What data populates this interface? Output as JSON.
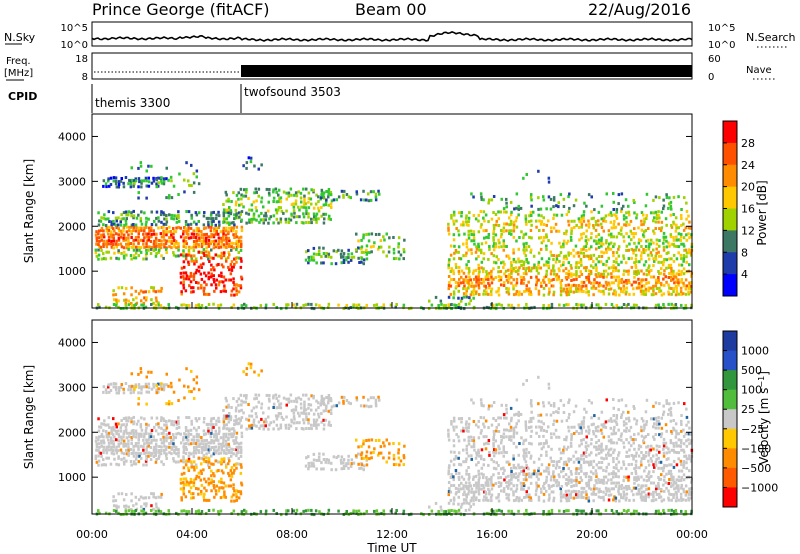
{
  "header": {
    "station": "Prince George (fitACF)",
    "beam": "Beam 00",
    "date": "22/Aug/2016"
  },
  "colors": {
    "power_scale": [
      "#0000ff",
      "#1e3caa",
      "#3c7864",
      "#32c832",
      "#a0d200",
      "#ffc800",
      "#ff8c00",
      "#ff5000",
      "#ff0000"
    ],
    "velocity_scale": [
      "#ff0000",
      "#ff5a00",
      "#ff8c00",
      "#ffc800",
      "#c8c8c8",
      "#c8c8c8",
      "#64c832",
      "#32963c",
      "#1e64a0",
      "#0000ff"
    ]
  },
  "chart_data": [
    {
      "type": "line",
      "panel": "noise",
      "left_label": "N.Sky",
      "right_label": "N.Search",
      "left_ticks": [
        "10^5",
        "10^0"
      ],
      "right_ticks": [
        "10^5",
        "10^0"
      ]
    },
    {
      "type": "line",
      "panel": "frequency",
      "left_label": "Freq.",
      "left_unit": "[MHz]",
      "left_ticks": [
        18,
        8
      ],
      "right_label": "Nave",
      "right_ticks": [
        60,
        0
      ]
    },
    {
      "type": "table",
      "panel": "cpid",
      "label": "CPID",
      "modes": [
        {
          "name": "themis 3300",
          "start_hour": 0,
          "end_hour": 6
        },
        {
          "name": "twofsound 3503",
          "start_hour": 6,
          "end_hour": 24
        }
      ]
    },
    {
      "type": "heatmap",
      "panel": "power",
      "ylabel": "Slant Range [km]",
      "yticks": [
        1000,
        2000,
        3000,
        4000
      ],
      "ylim": [
        180,
        4500
      ],
      "xlim": [
        0,
        24
      ],
      "colorbar_label": "Power [dB]",
      "colorbar_ticks": [
        4,
        8,
        12,
        16,
        20,
        24,
        28
      ],
      "clim": [
        0,
        32
      ]
    },
    {
      "type": "heatmap",
      "panel": "velocity",
      "ylabel": "Slant Range [km]",
      "yticks": [
        1000,
        2000,
        3000,
        4000
      ],
      "ylim": [
        180,
        4500
      ],
      "xlim": [
        0,
        24
      ],
      "xticks": [
        "00:00",
        "04:00",
        "08:00",
        "12:00",
        "16:00",
        "20:00",
        "00:00"
      ],
      "xlabel": "Time UT",
      "colorbar_label": "Velocity [m s^-1]",
      "colorbar_ticks": [
        "1000",
        "500",
        "100",
        "25",
        "−25",
        "−100",
        "−500",
        "−1000"
      ]
    }
  ]
}
